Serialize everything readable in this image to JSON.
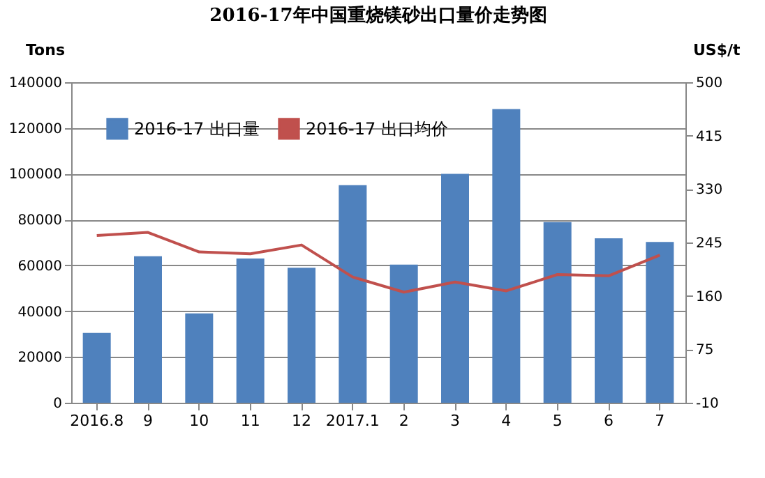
{
  "chart_data": {
    "type": "bar",
    "title": "2016-17年中国重烧镁砂出口量价走势图",
    "ylabel": "Tons",
    "y2label": "US$/t",
    "categories": [
      "2016.8",
      "9",
      "10",
      "11",
      "12",
      "2017.1",
      "2",
      "3",
      "4",
      "5",
      "6",
      "7"
    ],
    "series": [
      {
        "name": "2016-17 出口量",
        "color": "#4f81bd",
        "values": [
          30500,
          64000,
          39000,
          63000,
          59000,
          95000,
          60300,
          100000,
          128300,
          78900,
          71800,
          70200
        ]
      },
      {
        "name": "2016-17 出口均价",
        "type": "line",
        "axis": "y2",
        "color": "#c0504d",
        "values": [
          256,
          261,
          230,
          227,
          241,
          190,
          166,
          182,
          168,
          194,
          192,
          225
        ]
      }
    ],
    "ylim": [
      0,
      140000
    ],
    "yticks": [
      0,
      20000,
      40000,
      60000,
      80000,
      100000,
      120000,
      140000
    ],
    "y2lim": [
      -10,
      500
    ],
    "y2ticks": [
      -10,
      75,
      160,
      245,
      330,
      415,
      500
    ],
    "grid": "y",
    "legend": "top left",
    "marker": "none",
    "line_style": "solid"
  }
}
